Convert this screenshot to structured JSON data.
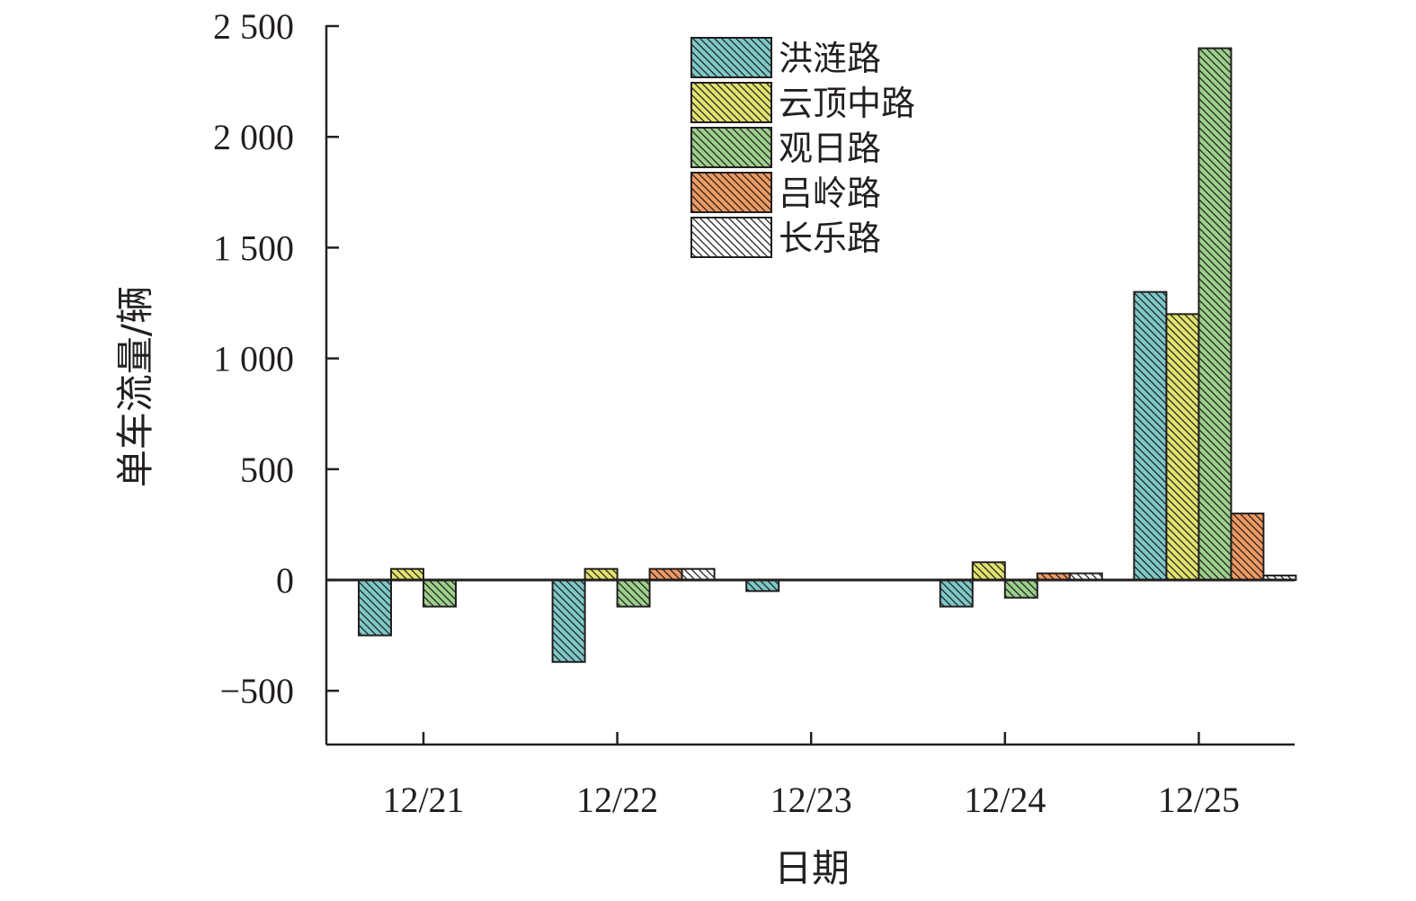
{
  "chart_data": {
    "type": "bar",
    "xlabel": "日期",
    "ylabel": "单车流量/辆",
    "categories": [
      "12/21",
      "12/22",
      "12/23",
      "12/24",
      "12/25"
    ],
    "ylim": [
      -750,
      2500
    ],
    "yticks": [
      -500,
      0,
      500,
      1000,
      1500,
      2000,
      2500
    ],
    "ytick_labels": [
      "−500",
      "0",
      "500",
      "1 000",
      "1 500",
      "2 000",
      "2 500"
    ],
    "grid": false,
    "legend_position": "top-center",
    "series": [
      {
        "name": "洪涟路",
        "color": "#7ec8c8",
        "values": [
          -250,
          -370,
          -50,
          -120,
          1300
        ]
      },
      {
        "name": "云顶中路",
        "color": "#e2e36e",
        "values": [
          50,
          50,
          0,
          80,
          1200
        ]
      },
      {
        "name": "观日路",
        "color": "#9dd08c",
        "values": [
          -120,
          -120,
          0,
          -80,
          2400
        ]
      },
      {
        "name": "吕岭路",
        "color": "#ee9a62",
        "values": [
          0,
          50,
          0,
          30,
          300
        ]
      },
      {
        "name": "长乐路",
        "color": "#ffffff",
        "values": [
          0,
          50,
          0,
          30,
          20
        ]
      }
    ]
  }
}
